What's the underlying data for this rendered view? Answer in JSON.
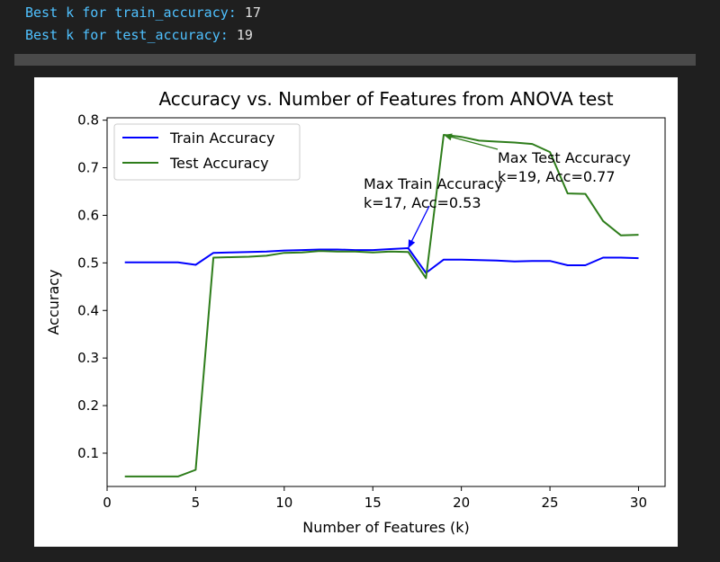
{
  "console": {
    "lines": [
      {
        "label": "Best k for train_accuracy:",
        "value": "17"
      },
      {
        "label": "Best k for test_accuracy:",
        "value": "19"
      }
    ]
  },
  "chart_data": {
    "type": "line",
    "title": "Accuracy vs. Number of Features from ANOVA test",
    "xlabel": "Number of Features (k)",
    "ylabel": "Accuracy",
    "xlim": [
      0,
      31.5
    ],
    "ylim": [
      0.03,
      0.805
    ],
    "xticks": [
      0,
      5,
      10,
      15,
      20,
      25,
      30
    ],
    "yticks": [
      0.1,
      0.2,
      0.3,
      0.4,
      0.5,
      0.6,
      0.7,
      0.8
    ],
    "x": [
      1,
      2,
      3,
      4,
      5,
      6,
      7,
      8,
      9,
      10,
      11,
      12,
      13,
      14,
      15,
      16,
      17,
      18,
      19,
      20,
      21,
      22,
      23,
      24,
      25,
      26,
      27,
      28,
      29,
      30
    ],
    "series": [
      {
        "name": "Train Accuracy",
        "color": "#0000ff",
        "values": [
          0.501,
          0.501,
          0.501,
          0.501,
          0.496,
          0.521,
          0.522,
          0.523,
          0.524,
          0.526,
          0.527,
          0.528,
          0.528,
          0.527,
          0.527,
          0.529,
          0.531,
          0.479,
          0.507,
          0.507,
          0.506,
          0.505,
          0.503,
          0.504,
          0.504,
          0.495,
          0.495,
          0.511,
          0.511,
          0.51
        ]
      },
      {
        "name": "Test Accuracy",
        "color": "#2e7d1b",
        "values": [
          0.051,
          0.051,
          0.051,
          0.051,
          0.065,
          0.511,
          0.512,
          0.513,
          0.515,
          0.521,
          0.522,
          0.525,
          0.524,
          0.524,
          0.522,
          0.524,
          0.523,
          0.468,
          0.769,
          0.765,
          0.757,
          0.755,
          0.753,
          0.75,
          0.733,
          0.646,
          0.645,
          0.588,
          0.558,
          0.559
        ]
      }
    ],
    "legend_position": "upper-left",
    "annotations": [
      {
        "lines": [
          "Max Train Accuracy",
          "k=17, Acc=0.53"
        ],
        "point": [
          17,
          0.531
        ],
        "color": "#0000ff"
      },
      {
        "lines": [
          "Max Test Accuracy",
          "k=19, Acc=0.77"
        ],
        "point": [
          19,
          0.769
        ],
        "color": "#2e7d1b"
      }
    ]
  }
}
